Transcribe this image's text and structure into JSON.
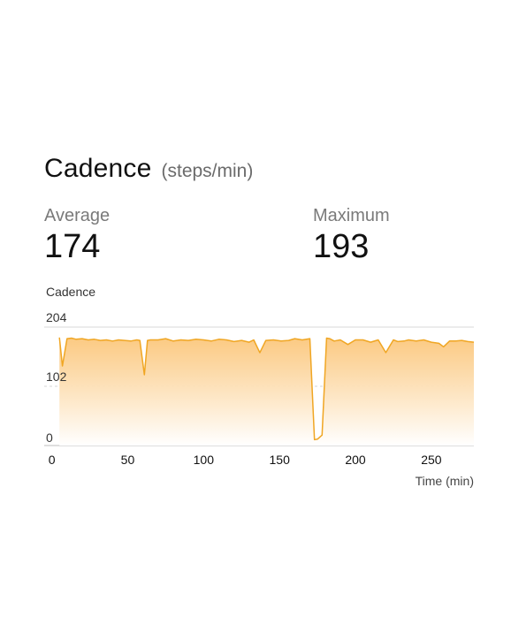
{
  "header": {
    "title": "Cadence",
    "unit": "(steps/min)"
  },
  "stats": {
    "average_label": "Average",
    "average_value": "174",
    "maximum_label": "Maximum",
    "maximum_value": "193"
  },
  "colors": {
    "accent_line": "#f0a623",
    "fill_top": "#fbc77c",
    "fill_bottom": "#ffffff"
  },
  "chart_data": {
    "type": "area",
    "title": "Cadence",
    "xlabel": "Time (min)",
    "ylabel": "",
    "ylim": [
      0,
      204
    ],
    "xlim": [
      -5,
      278
    ],
    "yticks": [
      0,
      102,
      204
    ],
    "xticks": [
      0,
      50,
      100,
      150,
      200,
      250
    ],
    "grid": "horizontal",
    "x": [
      5,
      7,
      10,
      13,
      16,
      20,
      24,
      28,
      32,
      36,
      40,
      44,
      48,
      52,
      56,
      58,
      61,
      63,
      65,
      70,
      75,
      80,
      85,
      90,
      95,
      100,
      105,
      110,
      115,
      120,
      125,
      130,
      133,
      137,
      141,
      146,
      151,
      156,
      160,
      165,
      170,
      173,
      175,
      178,
      181,
      183,
      186,
      190,
      195,
      200,
      205,
      210,
      215,
      220,
      225,
      228,
      232,
      235,
      240,
      245,
      250,
      255,
      258,
      262,
      266,
      270,
      274,
      278
    ],
    "y": [
      186,
      137,
      184,
      185,
      183,
      184,
      182,
      183,
      181,
      182,
      180,
      182,
      181,
      180,
      182,
      181,
      122,
      181,
      182,
      182,
      184,
      180,
      182,
      181,
      183,
      182,
      180,
      183,
      182,
      179,
      181,
      178,
      182,
      160,
      181,
      182,
      180,
      181,
      184,
      182,
      184,
      10,
      11,
      18,
      185,
      184,
      180,
      182,
      174,
      182,
      182,
      178,
      182,
      160,
      182,
      179,
      180,
      182,
      180,
      182,
      178,
      176,
      170,
      180,
      180,
      181,
      179,
      178
    ]
  }
}
